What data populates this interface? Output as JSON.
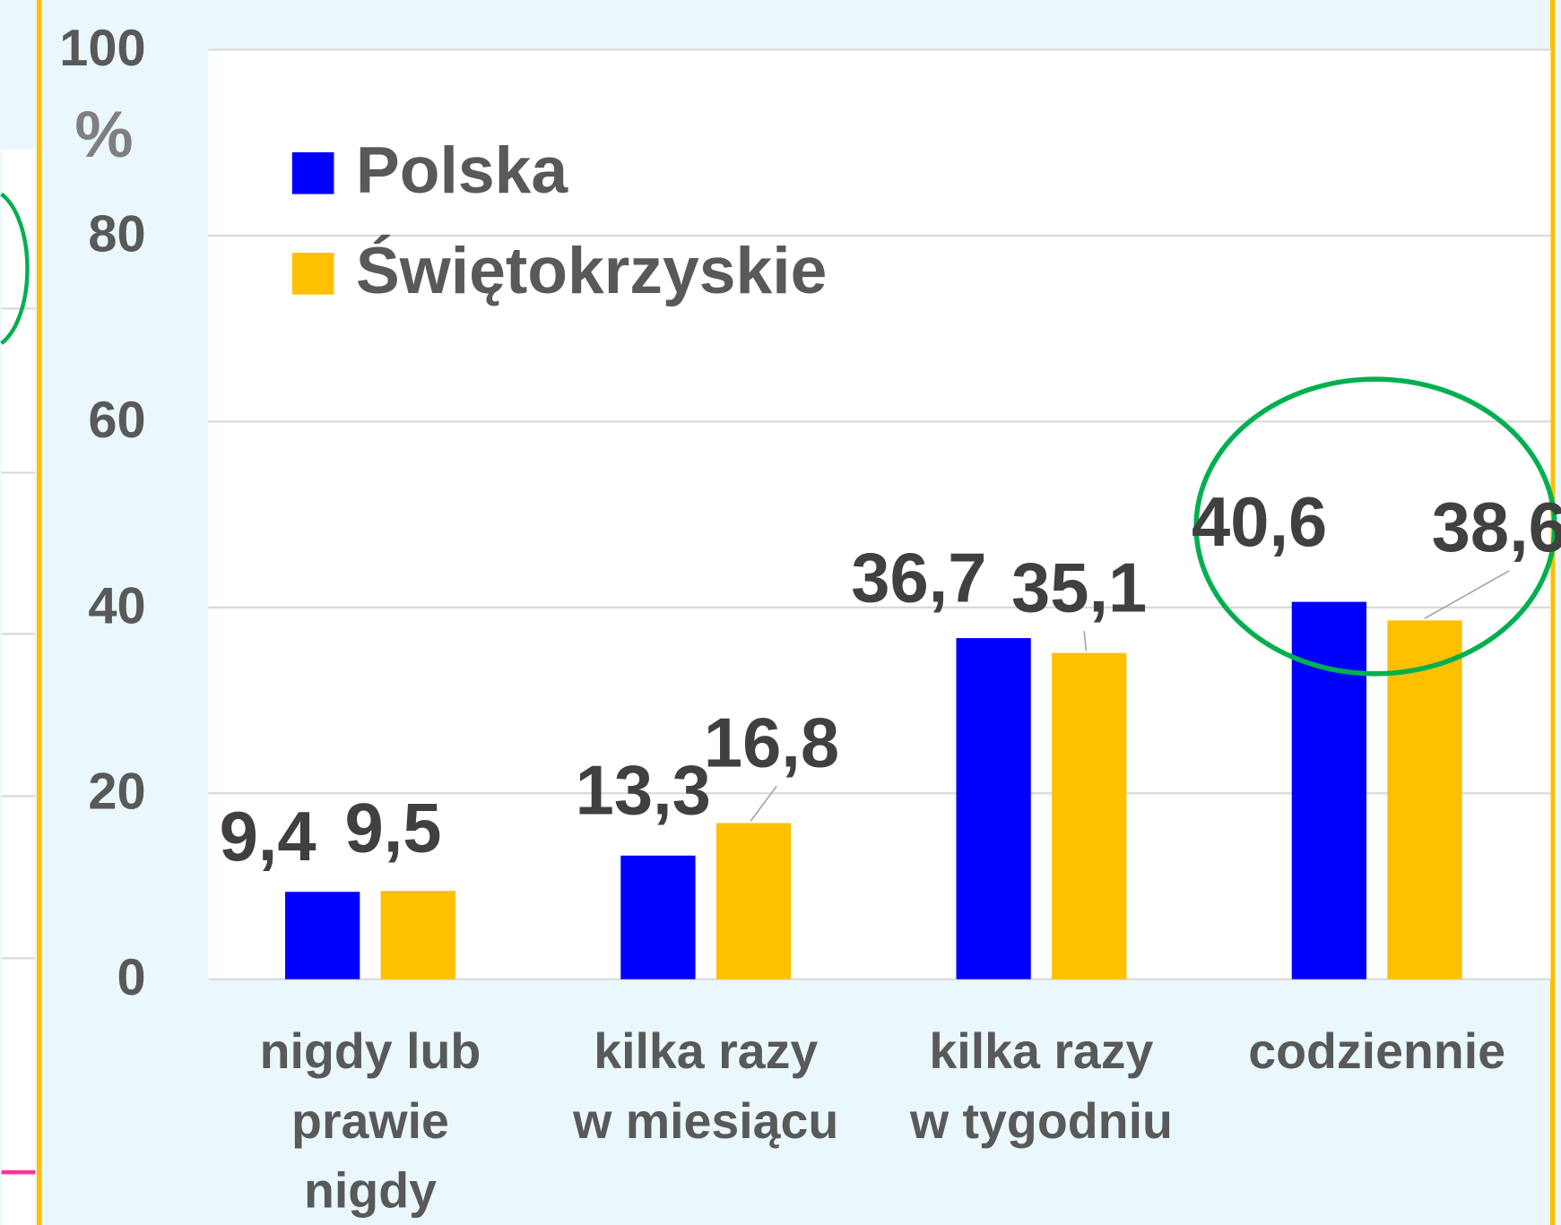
{
  "chart_data": {
    "type": "bar",
    "y_unit": "%",
    "categories": [
      "nigdy lub\nprawie\nnigdy",
      "kilka razy\nw miesiącu",
      "kilka razy\nw tygodniu",
      "codziennie"
    ],
    "series": [
      {
        "name": "Polska",
        "color": "#0000ff",
        "values": [
          9.4,
          13.3,
          36.7,
          40.6
        ],
        "value_labels": [
          "9,4",
          "13,3",
          "36,7",
          "40,6"
        ]
      },
      {
        "name": "Świętokrzyskie",
        "color": "#ffc000",
        "values": [
          9.5,
          16.8,
          35.1,
          38.6
        ],
        "value_labels": [
          "9,5",
          "16,8",
          "35,1",
          "38,6"
        ]
      }
    ],
    "ylim": [
      0,
      100
    ],
    "yticks": [
      0,
      20,
      40,
      60,
      80,
      100
    ],
    "grid": true,
    "legend": "top-left"
  }
}
